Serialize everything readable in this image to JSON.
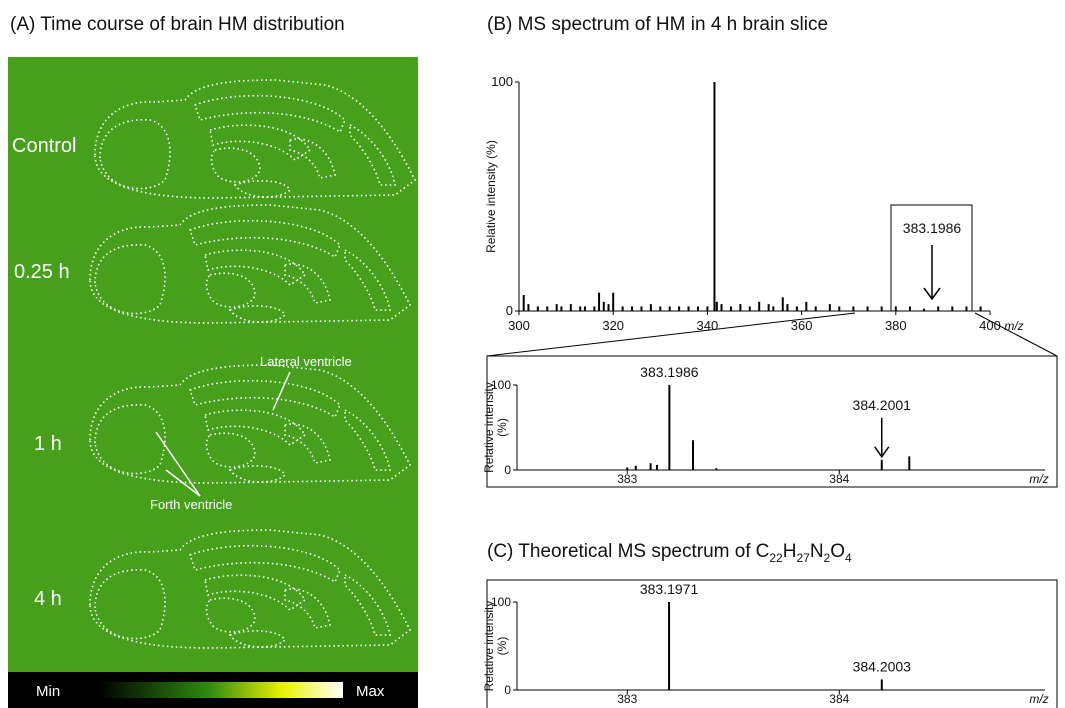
{
  "panel_a": {
    "title": "(A) Time course of brain HM distribution",
    "rows": [
      "Control",
      "0.25 h",
      "1 h",
      "4 h"
    ],
    "annotations": [
      "Lateral ventricle",
      "Forth ventricle"
    ],
    "colorbar": [
      "Min",
      "Max"
    ]
  },
  "chart_data": [
    {
      "type": "bar",
      "title": "(B) MS spectrum of HM in 4 h brain slice",
      "x": [
        301,
        302,
        304,
        306,
        308,
        309,
        311,
        313,
        314,
        316,
        317,
        318,
        319,
        320,
        322,
        324,
        326,
        328,
        330,
        332,
        334,
        336,
        338,
        340,
        341.5,
        342,
        343,
        345,
        347,
        349,
        351,
        353,
        354,
        356,
        357,
        359,
        361,
        363,
        366,
        368,
        371,
        374,
        377,
        380,
        383,
        386,
        389,
        392,
        395,
        398
      ],
      "values": [
        7,
        3,
        2,
        2,
        3,
        2,
        3,
        2,
        2,
        2,
        8,
        4,
        3,
        8,
        2,
        2,
        2,
        3,
        2,
        2,
        2,
        2,
        2,
        2,
        100,
        4,
        3,
        2,
        3,
        2,
        4,
        3,
        2,
        6,
        3,
        2,
        4,
        2,
        3,
        2,
        2,
        2,
        2,
        2,
        2,
        1,
        2,
        2,
        2,
        2
      ],
      "color": "#000000",
      "xlim": [
        300,
        400
      ],
      "ylim": [
        0,
        100
      ],
      "xticks": [
        300,
        320,
        340,
        360,
        380,
        400
      ],
      "yticks": [
        0,
        100
      ],
      "ylabel": [
        "Relative intensity (%)"
      ],
      "xlabel": "m/z",
      "annotation": 383.1986
    },
    {
      "type": "bar",
      "x": [
        383.0,
        383.04,
        383.11,
        383.14,
        383.1986,
        383.31,
        383.42,
        384.2001,
        384.33
      ],
      "values": [
        3,
        5,
        8,
        6,
        100,
        35,
        2,
        12,
        16
      ],
      "color": "#000000",
      "xlim": [
        382.48,
        384.97
      ],
      "ylim": [
        0,
        100
      ],
      "xticks": [
        383,
        384
      ],
      "yticks": [
        0,
        100
      ],
      "ylabel": [
        "Relative intensity",
        "(%)"
      ],
      "xlabel": "m/z",
      "peak_labels": [
        383.1986,
        384.2001
      ]
    },
    {
      "type": "bar",
      "title": "(C) Theoretical MS spectrum of",
      "formula_parts": [
        "C",
        "22",
        "H",
        "27",
        "N",
        "2",
        "O",
        "4"
      ],
      "x": [
        383.1971,
        384.2003
      ],
      "values": [
        100,
        12
      ],
      "color": "#000000",
      "xlim": [
        382.48,
        384.97
      ],
      "ylim": [
        0,
        100
      ],
      "xticks": [
        383,
        384
      ],
      "yticks": [
        0,
        100
      ],
      "ylabel": [
        "Relative intensity",
        "(%)"
      ],
      "xlabel": "m/z",
      "peak_labels": [
        383.1971,
        384.2003
      ]
    }
  ]
}
